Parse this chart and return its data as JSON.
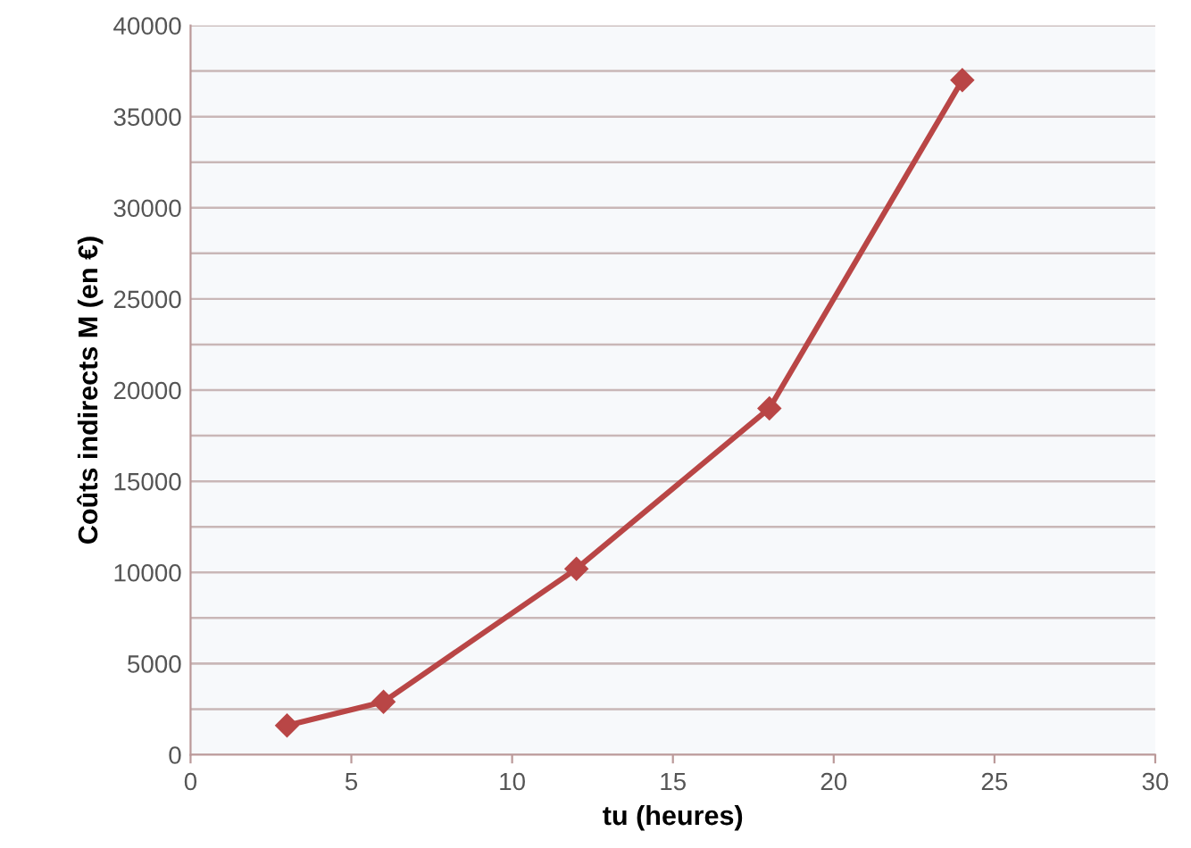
{
  "chart_data": {
    "type": "line",
    "xlabel": "tu (heures)",
    "ylabel": "Coûts indirects M (en €)",
    "x": [
      3,
      6,
      12,
      18,
      24
    ],
    "series": [
      {
        "color": "#b94646",
        "values": [
          1600,
          2900,
          10200,
          19000,
          37000
        ]
      }
    ],
    "xlim": [
      0,
      30
    ],
    "xticks": [
      0,
      5,
      10,
      15,
      20,
      25,
      30
    ],
    "ylim": [
      0,
      40000
    ],
    "yticks": [
      0,
      {
        "value": 2500,
        "label": null
      },
      5000,
      {
        "value": 7500,
        "label": null
      },
      10000,
      {
        "value": 12500,
        "label": null
      },
      15000,
      {
        "value": 17500,
        "label": null
      },
      20000,
      {
        "value": 22500,
        "label": null
      },
      25000,
      {
        "value": 27500,
        "label": null
      },
      30000,
      {
        "value": 32500,
        "label": null
      },
      35000,
      {
        "value": 37500,
        "label": null
      },
      40000
    ],
    "grid": "y",
    "marker": "diamond",
    "line_style": "solid",
    "legend": false
  }
}
